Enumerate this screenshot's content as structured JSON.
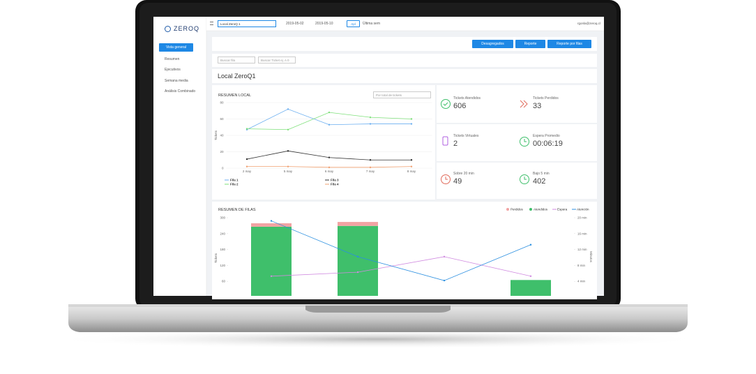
{
  "sidebar": {
    "logo": "ZEROQ",
    "active": "Vista general",
    "items": [
      "Resumen",
      "Ejecutivos",
      "Semana media",
      "Análisis Combinado"
    ]
  },
  "topbar": {
    "local": "Local ZeroQ 1",
    "date_from": "2019-05-02",
    "date_to": "2019-05-10",
    "apply": "Apl",
    "range": "Última sem",
    "user": "rgonla@zeroq.cl"
  },
  "actions": [
    "Desagregados",
    "Reporte",
    "Reporte por filas"
  ],
  "search": [
    "Buscar fila",
    "Buscar Ticket ej. A 0"
  ],
  "heading": "Local ZeroQ1",
  "cards": [
    {
      "label": "Tickets Atendidos",
      "value": 606
    },
    {
      "label": "Tickets Perdidos",
      "value": 33
    },
    {
      "label": "Tickets Virtuales",
      "value": 2
    },
    {
      "label": "Espera Promedio",
      "value": "00:06:19"
    },
    {
      "label": "Sobre 20 min",
      "value": 49
    },
    {
      "label": "Bajo 5 min",
      "value": 402
    }
  ],
  "chart_data": [
    {
      "type": "line",
      "title": "RESUMEN LOCAL",
      "selector": "Por total de tickets",
      "y_label": "Tickets",
      "categories": [
        "2 may",
        "5 may",
        "6 may",
        "7 may",
        "8 may"
      ],
      "series": [
        {
          "name": "Fila 1",
          "color": "#6aaef0",
          "values": [
            47,
            72,
            53,
            54,
            54
          ]
        },
        {
          "name": "Fila 2",
          "color": "#7ee07a",
          "values": [
            48,
            47,
            68,
            62,
            60
          ]
        },
        {
          "name": "Fila 3",
          "color": "#333333",
          "values": [
            11,
            21,
            13,
            10,
            10
          ]
        },
        {
          "name": "Fila 4",
          "color": "#f0a070",
          "values": [
            2,
            2,
            1,
            1,
            2
          ]
        }
      ],
      "ylim": [
        0,
        80
      ],
      "yticks": [
        0,
        20,
        40,
        60,
        80
      ],
      "grid": true
    },
    {
      "type": "bar",
      "stacked": true,
      "title": "RESUMEN DE FILAS",
      "y_label": "Tickets",
      "y2_label": "Minutos",
      "categories": [
        null,
        null,
        null,
        null
      ],
      "series": [
        {
          "name": "Perdidos",
          "type": "bar",
          "color": "#f2a3a3",
          "values": [
            13,
            15,
            1,
            0
          ]
        },
        {
          "name": "Atendidos",
          "type": "bar",
          "color": "#3fbf6b",
          "values": [
            266,
            269,
            2,
            65
          ]
        },
        {
          "name": "Espera",
          "type": "line",
          "axis": "y2",
          "color": "#d08ae0",
          "values": [
            5.3,
            6.3,
            10.2,
            5.3
          ]
        },
        {
          "name": "Atención",
          "type": "line",
          "axis": "y2",
          "color": "#2b8fe0",
          "values": [
            19.2,
            10.2,
            4.2,
            13.2
          ]
        }
      ],
      "ylim": [
        0,
        300
      ],
      "yticks": [
        60,
        120,
        180,
        240,
        300
      ],
      "y2lim": [
        0,
        20
      ],
      "y2ticks": [
        {
          "value": 4,
          "label": "4 min"
        },
        {
          "value": 8,
          "label": "8 min"
        },
        {
          "value": 12,
          "label": "12 min"
        },
        {
          "value": 16,
          "label": "16 min"
        },
        {
          "value": 20,
          "label": "20 min"
        }
      ],
      "grid": false
    }
  ]
}
